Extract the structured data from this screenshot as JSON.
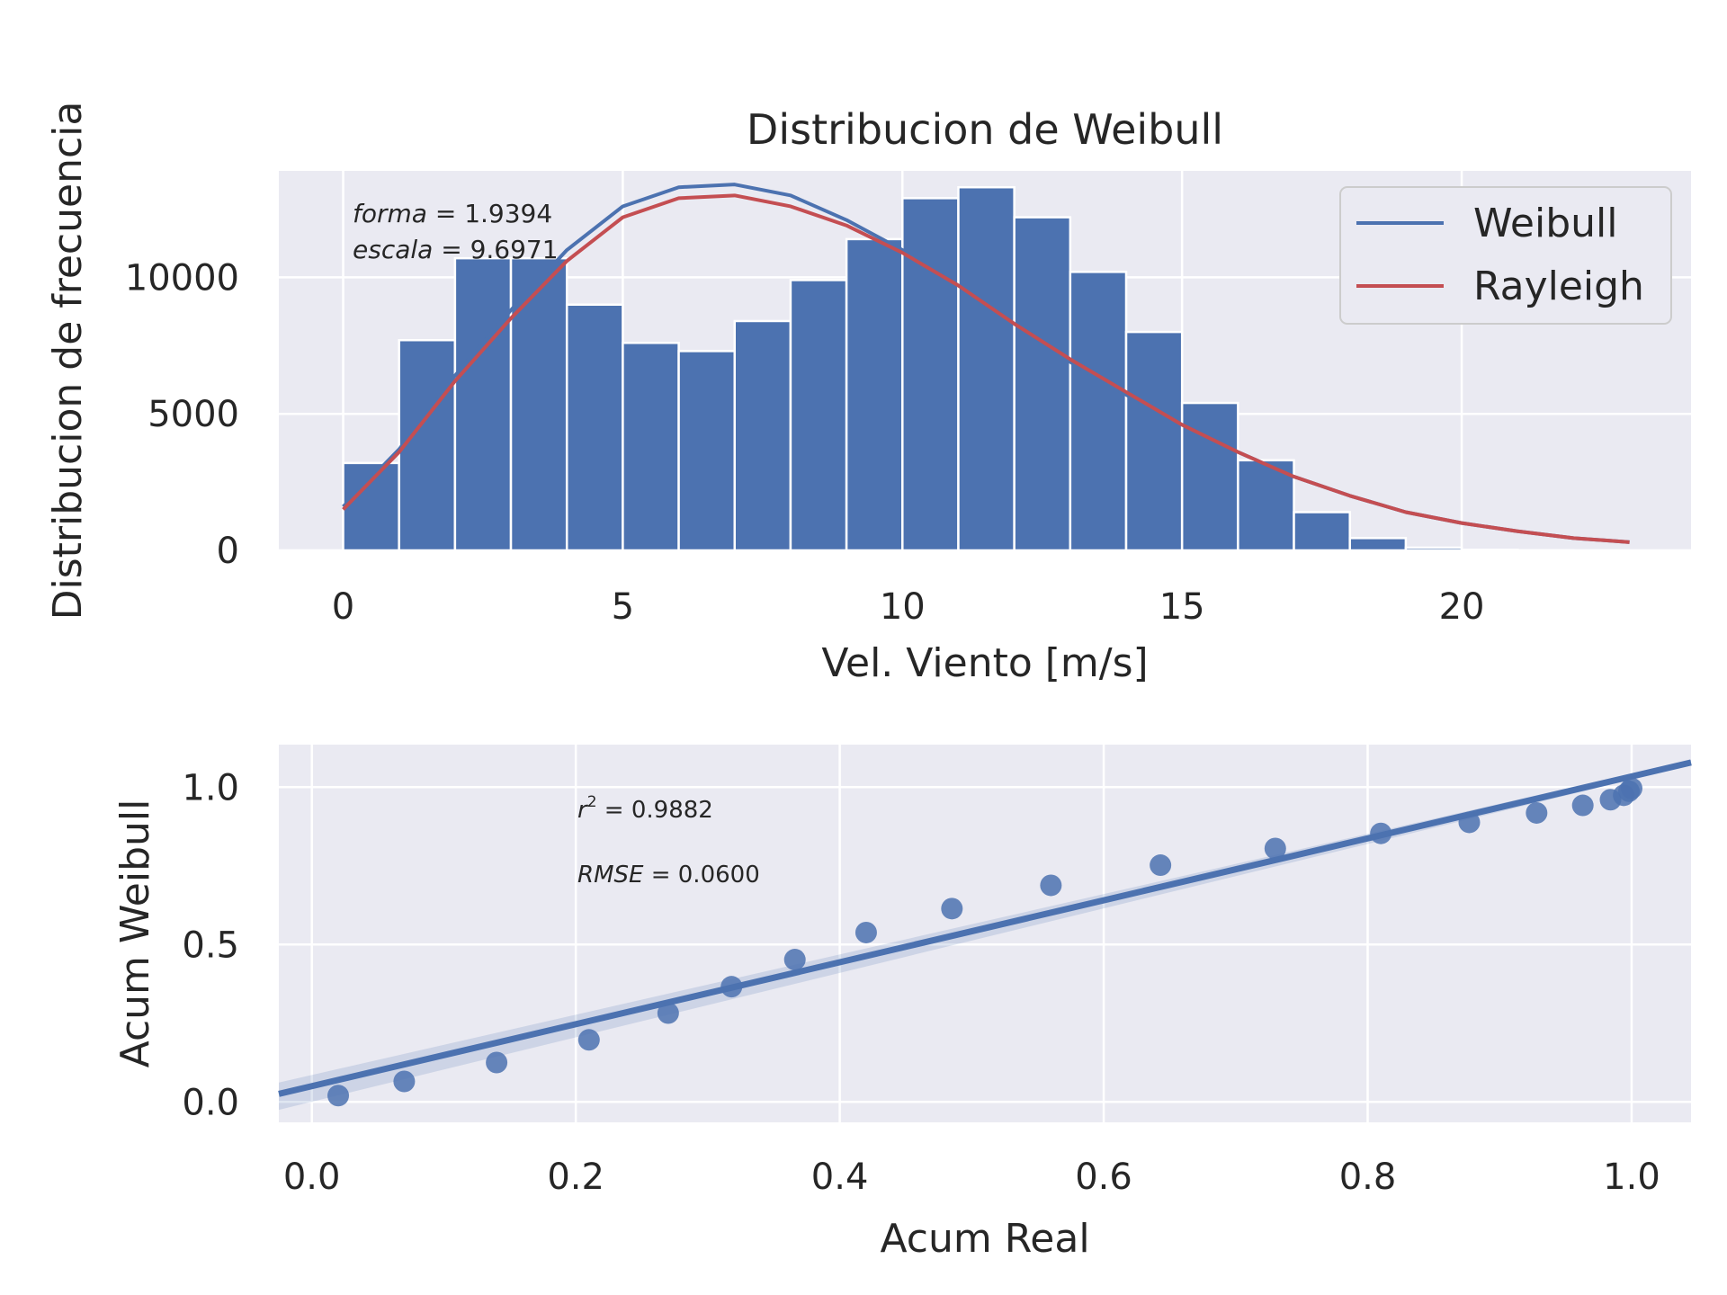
{
  "chart_data": [
    {
      "type": "bar",
      "title": "Distribucion de Weibull",
      "xlabel": "Vel. Viento [m/s]",
      "ylabel": "Distribucion de frecuencia",
      "xlim": [
        -1.15,
        24.1
      ],
      "ylim": [
        0,
        13900
      ],
      "xticks": [
        0,
        5,
        10,
        15,
        20
      ],
      "yticks": [
        0,
        5000,
        10000
      ],
      "grid": true,
      "bin_width": 1,
      "bin_starts": [
        0,
        1,
        2,
        3,
        4,
        5,
        6,
        7,
        8,
        9,
        10,
        11,
        12,
        13,
        14,
        15,
        16,
        17,
        18,
        19,
        20,
        21,
        22
      ],
      "values": [
        3200,
        7700,
        10700,
        10700,
        9000,
        7600,
        7300,
        8400,
        9900,
        11400,
        12900,
        13300,
        12200,
        10200,
        8000,
        5400,
        3300,
        1400,
        450,
        100,
        20,
        5,
        0
      ],
      "bar_color": "#4c72b0",
      "annotations": {
        "forma_label": "forma",
        "forma_value": "1.9394",
        "escala_label": "escala",
        "escala_value": "9.6971"
      },
      "legend": {
        "position": "top-right",
        "entries": [
          {
            "name": "Weibull",
            "color": "#4c72b0"
          },
          {
            "name": "Rayleigh",
            "color": "#c44e52"
          }
        ]
      },
      "series": [
        {
          "name": "Weibull",
          "type": "line",
          "color": "#4c72b0",
          "x": [
            0,
            1,
            2,
            3,
            4,
            5,
            6,
            7,
            8,
            9,
            10,
            11,
            12,
            13,
            14,
            15,
            16,
            17,
            18,
            19,
            20,
            21,
            22,
            23
          ],
          "y": [
            1600,
            3700,
            6400,
            8800,
            11000,
            12600,
            13300,
            13400,
            13000,
            12100,
            11000,
            9700,
            8300,
            6900,
            5700,
            4600,
            3600,
            2700,
            2000,
            1400,
            1000,
            700,
            450,
            300
          ]
        },
        {
          "name": "Rayleigh",
          "type": "line",
          "color": "#c44e52",
          "x": [
            0,
            1,
            2,
            3,
            4,
            5,
            6,
            7,
            8,
            9,
            10,
            11,
            12,
            13,
            14,
            15,
            16,
            17,
            18,
            19,
            20,
            21,
            22,
            23
          ],
          "y": [
            1500,
            3600,
            6200,
            8500,
            10600,
            12200,
            12900,
            13000,
            12600,
            11900,
            10900,
            9700,
            8300,
            7000,
            5800,
            4600,
            3600,
            2700,
            2000,
            1400,
            1000,
            700,
            450,
            300
          ]
        }
      ]
    },
    {
      "type": "scatter",
      "title": "",
      "xlabel": "Acum Real",
      "ylabel": "Acum Weibull",
      "xlim": [
        -0.025,
        1.045
      ],
      "ylim": [
        -0.065,
        1.135
      ],
      "xticks": [
        "0.0",
        "0.2",
        "0.4",
        "0.6",
        "0.8",
        "1.0"
      ],
      "yticks": [
        "0.0",
        "0.5",
        "1.0"
      ],
      "grid": true,
      "point_color": "#4c72b0",
      "points": {
        "x": [
          0.02,
          0.07,
          0.14,
          0.21,
          0.27,
          0.318,
          0.366,
          0.42,
          0.485,
          0.56,
          0.643,
          0.73,
          0.81,
          0.877,
          0.928,
          0.963,
          0.984,
          0.994,
          0.998,
          1.0
        ],
        "y": [
          0.02,
          0.065,
          0.125,
          0.197,
          0.282,
          0.366,
          0.452,
          0.538,
          0.614,
          0.688,
          0.752,
          0.805,
          0.853,
          0.888,
          0.918,
          0.942,
          0.96,
          0.974,
          0.987,
          0.996
        ]
      },
      "regression": {
        "slope": 0.984,
        "intercept": 0.05,
        "color": "#4c72b0",
        "ci_low_intercept": 0.085,
        "ci_low_slope": 0.94
      },
      "annotations": {
        "r2_label": "r",
        "r2_sup": "2",
        "r2_value": "0.9882",
        "rmse_label": "RMSE",
        "rmse_value": "0.0600"
      }
    }
  ]
}
